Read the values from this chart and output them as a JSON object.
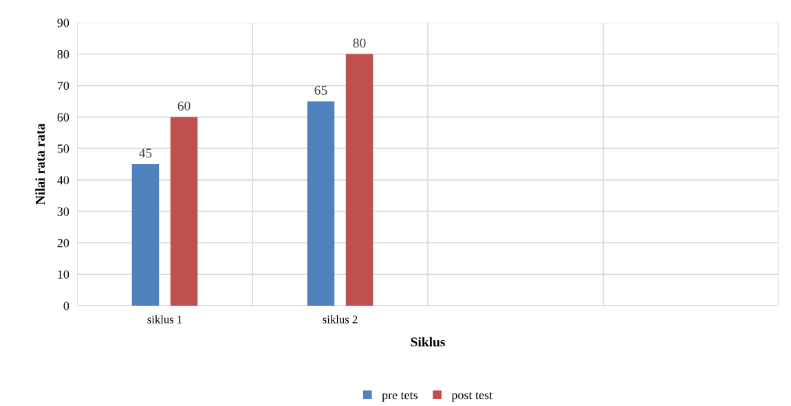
{
  "chart_data": {
    "type": "bar",
    "xlabel": "Siklus",
    "ylabel": "Nilai rata rata",
    "categories": [
      "siklus 1",
      "siklus 2",
      null,
      null
    ],
    "series": [
      {
        "name": "pre tets",
        "color": "#4f81bd",
        "values": [
          45,
          65,
          null,
          null
        ]
      },
      {
        "name": "post test",
        "color": "#c0504d",
        "values": [
          60,
          80,
          null,
          null
        ]
      }
    ],
    "ylim": [
      0,
      90
    ],
    "yticks": [
      0,
      10,
      20,
      30,
      40,
      50,
      60,
      70,
      80,
      90
    ],
    "grid": true,
    "legend": "bottom",
    "data_labels": true
  }
}
